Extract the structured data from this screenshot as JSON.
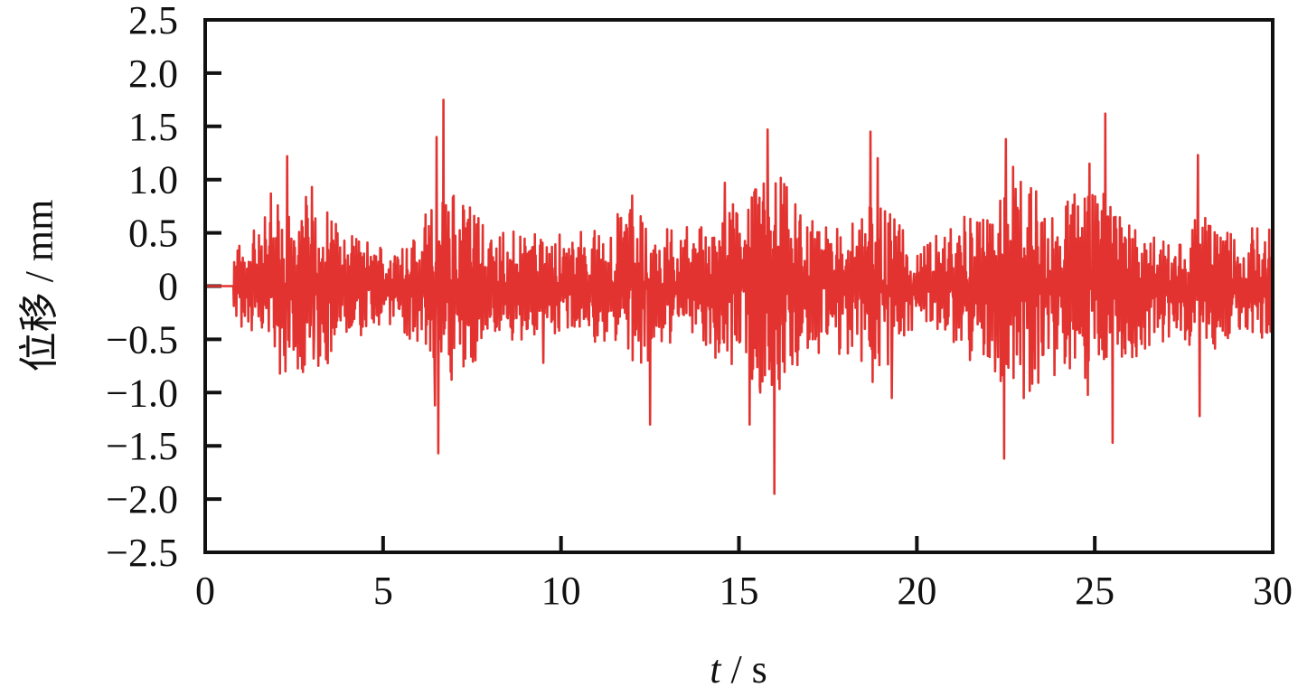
{
  "chart_data": {
    "type": "line",
    "xlabel_var": "t",
    "xlabel_unit": "/ s",
    "ylabel": "位移 / mm",
    "xlim": [
      0,
      30
    ],
    "ylim": [
      -2.5,
      2.5
    ],
    "xticks": [
      "0",
      "5",
      "10",
      "15",
      "20",
      "25",
      "30"
    ],
    "yticks": [
      "2.5",
      "2.0",
      "1.5",
      "1.0",
      "0.5",
      "0",
      "−0.5",
      "−1.0",
      "−1.5",
      "−2.0",
      "−2.5"
    ],
    "grid": false,
    "legend": "none",
    "line_color": "#e33330",
    "series": [
      {
        "description_note": "",
        "quiet_until": 0.8,
        "envelope_per_second": [
          0.0,
          0.35,
          0.7,
          0.8,
          0.45,
          0.3,
          0.5,
          0.9,
          0.45,
          0.45,
          0.4,
          0.45,
          0.7,
          0.45,
          0.5,
          0.7,
          1.0,
          0.55,
          0.55,
          0.8,
          0.35,
          0.5,
          0.65,
          1.0,
          0.7,
          0.85,
          0.6,
          0.45,
          0.6,
          0.45
        ],
        "peaks": [
          {
            "t": 2.3,
            "y": 1.22
          },
          {
            "t": 2.25,
            "y": -0.8
          },
          {
            "t": 1.85,
            "y": 0.87
          },
          {
            "t": 3.0,
            "y": 0.93
          },
          {
            "t": 3.05,
            "y": -0.68
          },
          {
            "t": 6.5,
            "y": 1.4
          },
          {
            "t": 6.7,
            "y": 1.75
          },
          {
            "t": 6.55,
            "y": -1.57
          },
          {
            "t": 6.45,
            "y": -1.12
          },
          {
            "t": 9.5,
            "y": -0.72
          },
          {
            "t": 12.0,
            "y": 0.85
          },
          {
            "t": 12.5,
            "y": -1.3
          },
          {
            "t": 14.6,
            "y": 0.97
          },
          {
            "t": 15.3,
            "y": -1.3
          },
          {
            "t": 15.8,
            "y": 1.47
          },
          {
            "t": 16.0,
            "y": -1.95
          },
          {
            "t": 15.6,
            "y": -1.0
          },
          {
            "t": 18.7,
            "y": 1.45
          },
          {
            "t": 18.9,
            "y": 1.2
          },
          {
            "t": 18.75,
            "y": -0.9
          },
          {
            "t": 19.3,
            "y": -1.05
          },
          {
            "t": 22.5,
            "y": 1.38
          },
          {
            "t": 22.45,
            "y": -1.62
          },
          {
            "t": 22.7,
            "y": 1.12
          },
          {
            "t": 22.2,
            "y": -0.8
          },
          {
            "t": 25.3,
            "y": 1.62
          },
          {
            "t": 25.5,
            "y": -1.47
          },
          {
            "t": 24.85,
            "y": 1.15
          },
          {
            "t": 24.8,
            "y": -1.02
          },
          {
            "t": 27.9,
            "y": 1.23
          },
          {
            "t": 27.95,
            "y": -1.22
          },
          {
            "t": 29.9,
            "y": 0.53
          }
        ]
      }
    ]
  }
}
